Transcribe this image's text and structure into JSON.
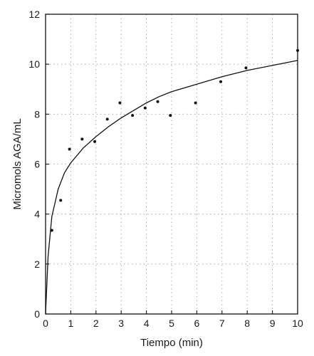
{
  "chart_data": {
    "type": "scatter",
    "title": "",
    "xlabel": "Tiempo (min)",
    "ylabel": "Micromols AGA/mL",
    "xlim": [
      0,
      10
    ],
    "ylim": [
      0,
      12
    ],
    "x_ticks": [
      "0",
      "1",
      "2",
      "3",
      "4",
      "5",
      "6",
      "7",
      "8",
      "9",
      "10"
    ],
    "y_ticks": [
      "0",
      "2",
      "4",
      "6",
      "8",
      "10",
      "12"
    ],
    "grid": true,
    "series": [
      {
        "type": "scatter",
        "x": [
          0.25,
          0.6,
          0.95,
          1.45,
          1.95,
          2.45,
          2.95,
          3.45,
          3.95,
          4.45,
          4.95,
          5.95,
          6.95,
          7.95,
          10.0
        ],
        "y": [
          3.35,
          4.55,
          6.6,
          7.0,
          6.9,
          7.8,
          8.45,
          7.95,
          8.25,
          8.5,
          7.95,
          8.45,
          9.3,
          9.85,
          10.55
        ]
      },
      {
        "type": "line",
        "x": [
          0,
          0.1,
          0.25,
          0.5,
          0.75,
          1,
          1.5,
          2,
          2.5,
          3,
          3.5,
          4,
          4.5,
          5,
          6,
          7,
          8,
          9,
          10
        ],
        "y": [
          0,
          2.3,
          3.9,
          5.0,
          5.65,
          6.05,
          6.65,
          7.1,
          7.5,
          7.85,
          8.15,
          8.45,
          8.7,
          8.9,
          9.2,
          9.5,
          9.75,
          9.95,
          10.15
        ]
      }
    ]
  }
}
